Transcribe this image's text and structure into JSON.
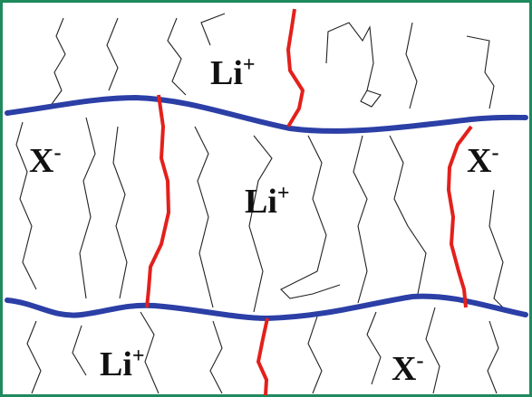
{
  "labels": [
    {
      "text": "Li",
      "charge": "+"
    },
    {
      "text": "X",
      "charge": "-"
    },
    {
      "text": "Li",
      "charge": "+"
    },
    {
      "text": "X",
      "charge": "-"
    },
    {
      "text": "Li",
      "charge": "+"
    },
    {
      "text": "X",
      "charge": "-"
    }
  ]
}
